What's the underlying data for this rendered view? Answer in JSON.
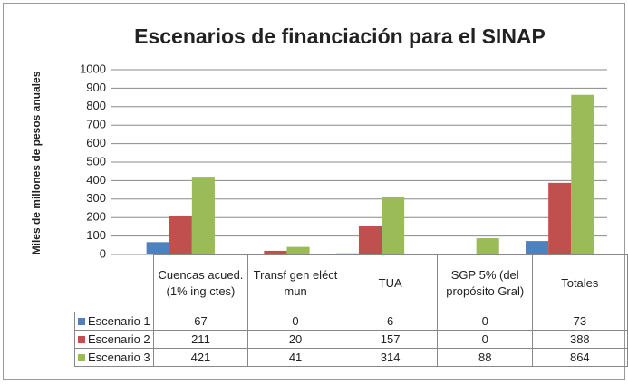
{
  "chart_data": {
    "type": "bar",
    "title": "Escenarios de financiación para el SINAP",
    "y_label": "Miles de millones de pesos anuales",
    "categories": [
      "Cuencas acued. (1% ing ctes)",
      "Transf gen eléct mun",
      "TUA",
      "SGP 5% (del propósito Gral)",
      "Totales"
    ],
    "series": [
      {
        "name": "Escenario 1",
        "color": "#4f81bd",
        "values": [
          67,
          0,
          6,
          0,
          73
        ]
      },
      {
        "name": "Escenario 2",
        "color": "#c0504d",
        "values": [
          211,
          20,
          157,
          0,
          388
        ]
      },
      {
        "name": "Escenario 3",
        "color": "#9bbb59",
        "values": [
          421,
          41,
          314,
          88,
          864
        ]
      }
    ],
    "ylim": [
      0,
      1000
    ],
    "yticks": [
      0,
      100,
      200,
      300,
      400,
      500,
      600,
      700,
      800,
      900,
      1000
    ],
    "grid": true
  }
}
